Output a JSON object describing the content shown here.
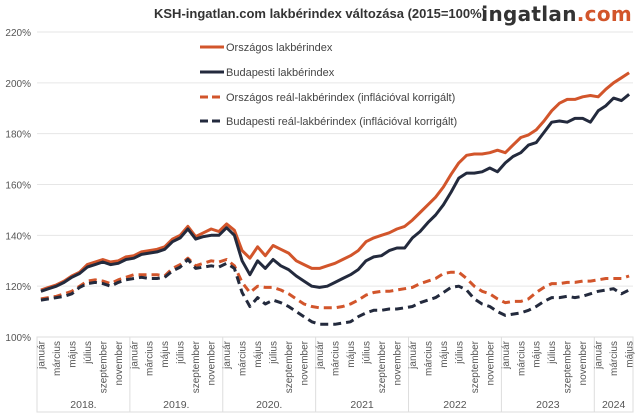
{
  "logo": {
    "main": "ingatlan",
    "suffix": ".com"
  },
  "colors": {
    "orange": "#d2552b",
    "navy": "#232a3d"
  },
  "chart_data": {
    "type": "line",
    "title": "KSH-ingatlan.com lakbérindex változása (2015=100%)",
    "ylim": [
      100,
      220
    ],
    "yticks": [
      "100%",
      "120%",
      "140%",
      "160%",
      "180%",
      "200%",
      "220%"
    ],
    "ytick_values": [
      100,
      120,
      140,
      160,
      180,
      200,
      220
    ],
    "grid": true,
    "legend_placement": "top-center",
    "x_start": "2018-01",
    "x_end": "2024-05",
    "month_tick_labels": [
      "január",
      "március",
      "május",
      "július",
      "szeptember",
      "november"
    ],
    "years": [
      {
        "label": "2018.",
        "months": 12
      },
      {
        "label": "2019.",
        "months": 12
      },
      {
        "label": "2020.",
        "months": 12
      },
      {
        "label": "2021",
        "months": 12
      },
      {
        "label": "2022",
        "months": 12
      },
      {
        "label": "2023",
        "months": 12
      },
      {
        "label": "2024",
        "months": 5
      }
    ],
    "series": [
      {
        "name": "Országos lakbérindex",
        "color": "#d2552b",
        "dashed": false,
        "values": [
          118.5,
          119.5,
          120.5,
          122,
          124,
          125.5,
          128.5,
          129.5,
          130.5,
          129.5,
          130,
          131.5,
          132,
          133.5,
          134,
          134.5,
          135.5,
          138.5,
          140,
          143.5,
          139.5,
          141,
          142.5,
          141.5,
          144.5,
          142,
          134,
          131,
          135.5,
          132,
          136,
          134.5,
          133,
          130,
          128.5,
          127,
          127,
          128,
          129,
          130.5,
          132,
          134,
          137.5,
          139,
          140,
          141,
          142.5,
          143.5,
          146,
          149,
          152,
          155,
          159,
          164,
          168.5,
          171.5,
          172,
          172,
          172.5,
          173.5,
          172.5,
          175.5,
          178.5,
          179.5,
          181.5,
          185,
          189,
          192,
          193.5,
          193.5,
          194.5,
          195,
          194.5,
          197.5,
          200,
          202,
          204
        ]
      },
      {
        "name": "Budapesti lakbérindex",
        "color": "#232a3d",
        "dashed": false,
        "values": [
          118,
          119,
          120,
          121.5,
          123.5,
          125,
          127.5,
          128.5,
          129.5,
          128.5,
          129,
          130.5,
          131,
          132.5,
          133,
          133.5,
          134.5,
          137.5,
          139,
          142.5,
          138.5,
          139.5,
          140,
          140,
          143,
          140,
          130,
          124.5,
          130,
          127,
          130.5,
          128,
          126.5,
          124,
          122,
          120,
          119.5,
          120,
          121.5,
          123,
          124.5,
          126.5,
          130,
          131.5,
          132,
          134,
          135,
          135,
          139,
          141.5,
          145,
          148,
          152,
          157,
          162.5,
          164.5,
          164.5,
          165,
          166.5,
          165,
          168.5,
          171,
          172.5,
          175.5,
          176.5,
          180.5,
          184.5,
          185,
          184.5,
          186,
          186,
          184.5,
          189,
          191,
          194,
          193,
          195.5
        ]
      },
      {
        "name": "Országos reál-lakbérindex (inflációval korrigált)",
        "color": "#d2552b",
        "dashed": true,
        "values": [
          115,
          115.5,
          116,
          117,
          118,
          120,
          122,
          122.5,
          122,
          121,
          122.5,
          123.5,
          124.5,
          124.5,
          124.5,
          124.5,
          124,
          127,
          128.5,
          131,
          128,
          129,
          130,
          129.5,
          130.5,
          128,
          121.5,
          117.5,
          120,
          119.5,
          119.5,
          118.5,
          117,
          115,
          113,
          112,
          111.5,
          111.5,
          111.5,
          112,
          113,
          114.5,
          116.5,
          117.5,
          118,
          118,
          118.5,
          119,
          119.5,
          121,
          122,
          123,
          125,
          125.5,
          125.5,
          123,
          120,
          118,
          117,
          115,
          113.5,
          114,
          114,
          115,
          117.5,
          119.5,
          121,
          121,
          121.5,
          121.5,
          122,
          122,
          122.5,
          123,
          123,
          123,
          124
        ]
      },
      {
        "name": "Budapesti reál-lakbérindex (inflációval korrigált)",
        "color": "#232a3d",
        "dashed": true,
        "values": [
          114.5,
          115,
          115.5,
          116,
          117,
          119.5,
          121,
          121.5,
          121,
          120,
          121.5,
          122.5,
          123,
          123.5,
          123,
          123,
          123.5,
          126,
          127.5,
          130.5,
          127,
          127.5,
          128,
          127.5,
          129,
          127,
          117.5,
          112,
          115.5,
          113,
          114.5,
          113.5,
          112,
          110,
          108,
          106,
          105,
          105,
          105,
          105.5,
          106,
          108,
          109.5,
          110.5,
          110.5,
          111,
          111,
          111.5,
          112,
          113.5,
          114.5,
          115.5,
          117.5,
          119.5,
          120,
          118.5,
          115,
          113,
          112,
          110,
          108.5,
          109,
          109.5,
          110.5,
          112,
          114,
          115.5,
          115.5,
          116,
          115.5,
          116,
          117,
          118,
          118.5,
          119,
          117,
          118.5
        ]
      }
    ]
  }
}
